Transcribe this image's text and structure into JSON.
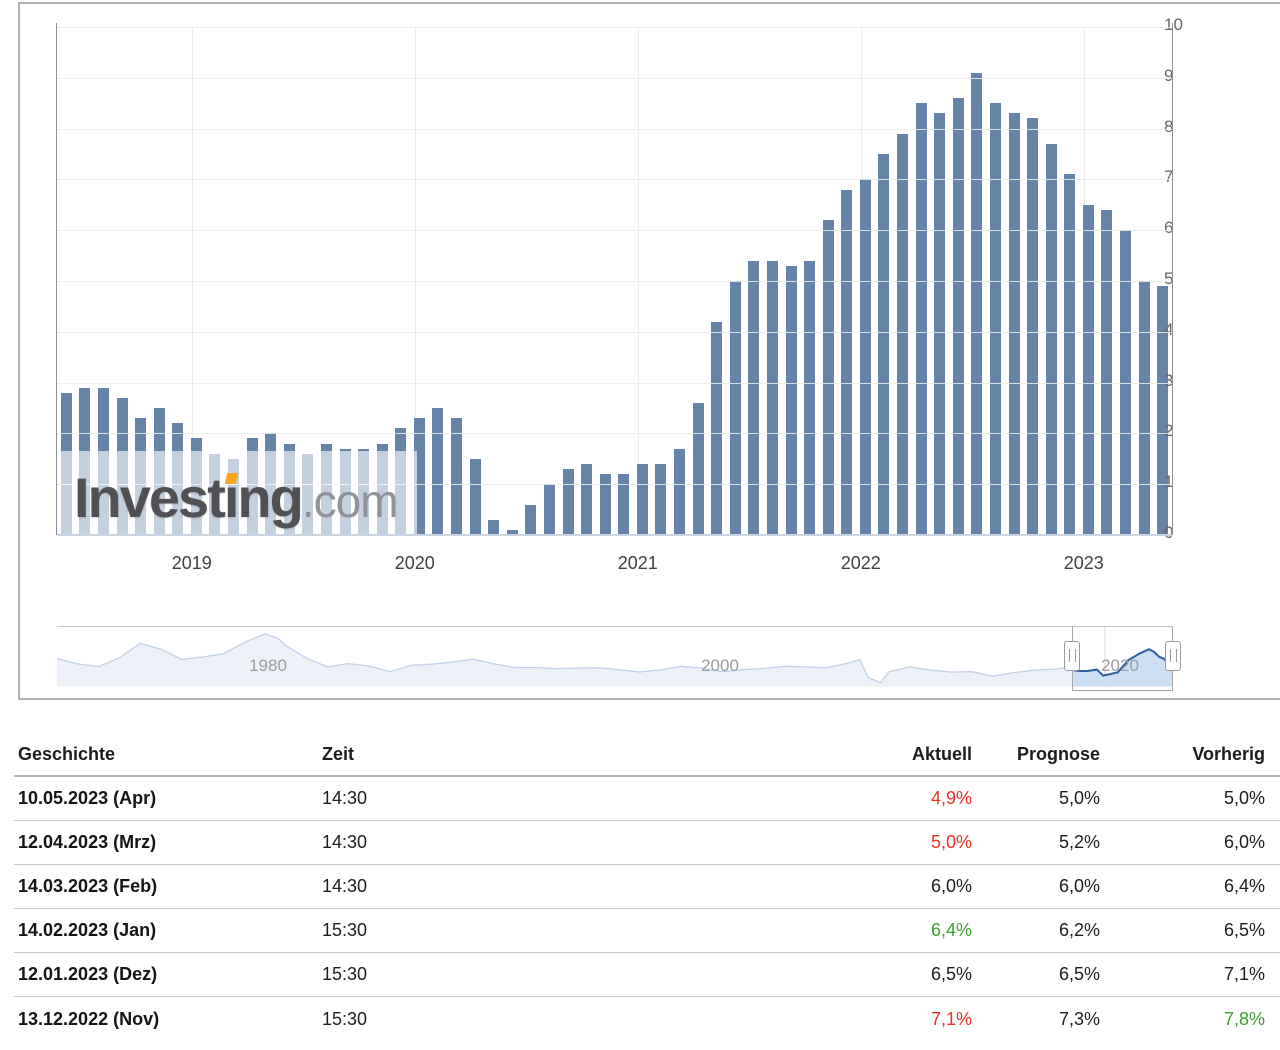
{
  "colors": {
    "bar": "#6684a8",
    "negative": "#ee2f23",
    "positive": "#3a9e33",
    "nav_area_fill": "#edf2f9",
    "nav_area_line": "#c2d1e6",
    "nav_selected_fill": "#cddff5",
    "nav_selected_line": "#2d5f9f",
    "watermark_dot": "#f6a71f"
  },
  "watermark": {
    "brand_head": "Invest",
    "brand_i": "ı",
    "brand_tail": "ng",
    "suffix": ".com"
  },
  "chart_data": [
    {
      "type": "bar",
      "title": "",
      "xlabel": "",
      "ylabel": "",
      "ylim": [
        0,
        10
      ],
      "grid": true,
      "y_ticks": [
        "0",
        "1",
        "2",
        "3",
        "4",
        "5",
        "6",
        "7",
        "8",
        "9",
        "10"
      ],
      "x_tick_labels": [
        "2019",
        "2020",
        "2021",
        "2022",
        "2023"
      ],
      "start_month": "2018-05",
      "values": [
        2.8,
        2.9,
        2.9,
        2.7,
        2.3,
        2.5,
        2.2,
        1.9,
        1.6,
        1.5,
        1.9,
        2.0,
        1.8,
        1.6,
        1.8,
        1.7,
        1.7,
        1.8,
        2.1,
        2.3,
        2.5,
        2.3,
        1.5,
        0.3,
        0.1,
        0.6,
        1.0,
        1.3,
        1.4,
        1.2,
        1.2,
        1.4,
        1.4,
        1.7,
        2.6,
        4.2,
        5.0,
        5.4,
        5.4,
        5.3,
        5.4,
        6.2,
        6.8,
        7.0,
        7.5,
        7.9,
        8.5,
        8.3,
        8.6,
        9.1,
        8.5,
        8.3,
        8.2,
        7.7,
        7.1,
        6.5,
        6.4,
        6.0,
        5.0,
        4.9
      ]
    },
    {
      "type": "area",
      "title": "navigator",
      "x_tick_labels": [
        "1980",
        "2000",
        "2020"
      ],
      "selected_range_years": [
        2017.6,
        2022.4
      ],
      "points": [
        [
          1970,
          5.9
        ],
        [
          1971,
          4.2
        ],
        [
          1972,
          3.3
        ],
        [
          1973,
          6.2
        ],
        [
          1974,
          11.1
        ],
        [
          1975,
          9.1
        ],
        [
          1976,
          5.7
        ],
        [
          1977,
          6.5
        ],
        [
          1978,
          7.6
        ],
        [
          1979,
          11.3
        ],
        [
          1980,
          14.2
        ],
        [
          1980.6,
          12.8
        ],
        [
          1981,
          10.3
        ],
        [
          1982,
          6.1
        ],
        [
          1983,
          3.2
        ],
        [
          1984,
          4.3
        ],
        [
          1985,
          3.5
        ],
        [
          1986,
          1.6
        ],
        [
          1987,
          3.7
        ],
        [
          1988,
          4.1
        ],
        [
          1989,
          4.8
        ],
        [
          1990,
          5.8
        ],
        [
          1991,
          4.2
        ],
        [
          1992,
          3.0
        ],
        [
          1993,
          3.0
        ],
        [
          1994,
          2.6
        ],
        [
          1995,
          2.8
        ],
        [
          1996,
          2.9
        ],
        [
          1997,
          2.3
        ],
        [
          1998,
          1.5
        ],
        [
          1999,
          2.2
        ],
        [
          2000,
          3.4
        ],
        [
          2001,
          2.8
        ],
        [
          2002,
          1.6
        ],
        [
          2003,
          2.3
        ],
        [
          2004,
          2.7
        ],
        [
          2005,
          3.4
        ],
        [
          2006,
          3.2
        ],
        [
          2007,
          2.9
        ],
        [
          2008,
          4.4
        ],
        [
          2008.6,
          5.6
        ],
        [
          2009,
          -0.4
        ],
        [
          2009.6,
          -2.0
        ],
        [
          2010,
          1.6
        ],
        [
          2011,
          3.2
        ],
        [
          2012,
          2.1
        ],
        [
          2013,
          1.5
        ],
        [
          2014,
          1.6
        ],
        [
          2015,
          0.1
        ],
        [
          2016,
          1.3
        ],
        [
          2017,
          2.1
        ],
        [
          2018,
          2.5
        ],
        [
          2018.5,
          2.9
        ],
        [
          2019,
          1.9
        ],
        [
          2019.5,
          1.8
        ],
        [
          2020,
          2.3
        ],
        [
          2020.3,
          0.3
        ],
        [
          2021,
          1.4
        ],
        [
          2021.5,
          5.4
        ],
        [
          2022,
          7.5
        ],
        [
          2022.5,
          9.1
        ],
        [
          2022.75,
          8.2
        ],
        [
          2023.0,
          6.5
        ],
        [
          2023.2,
          6.0
        ],
        [
          2023.37,
          4.9
        ]
      ]
    }
  ],
  "table": {
    "headers": [
      "Geschichte",
      "Zeit",
      "Aktuell",
      "Prognose",
      "Vorherig"
    ],
    "rows": [
      {
        "date": "10.05.2023 (Apr)",
        "time": "14:30",
        "actual": "4,9%",
        "actual_color": "red",
        "forecast": "5,0%",
        "previous": "5,0%",
        "previous_color": "default"
      },
      {
        "date": "12.04.2023 (Mrz)",
        "time": "14:30",
        "actual": "5,0%",
        "actual_color": "red",
        "forecast": "5,2%",
        "previous": "6,0%",
        "previous_color": "default"
      },
      {
        "date": "14.03.2023 (Feb)",
        "time": "14:30",
        "actual": "6,0%",
        "actual_color": "default",
        "forecast": "6,0%",
        "previous": "6,4%",
        "previous_color": "default"
      },
      {
        "date": "14.02.2023 (Jan)",
        "time": "15:30",
        "actual": "6,4%",
        "actual_color": "green",
        "forecast": "6,2%",
        "previous": "6,5%",
        "previous_color": "default"
      },
      {
        "date": "12.01.2023 (Dez)",
        "time": "15:30",
        "actual": "6,5%",
        "actual_color": "default",
        "forecast": "6,5%",
        "previous": "7,1%",
        "previous_color": "default"
      },
      {
        "date": "13.12.2022 (Nov)",
        "time": "15:30",
        "actual": "7,1%",
        "actual_color": "red",
        "forecast": "7,3%",
        "previous": "7,8%",
        "previous_color": "green"
      }
    ]
  }
}
